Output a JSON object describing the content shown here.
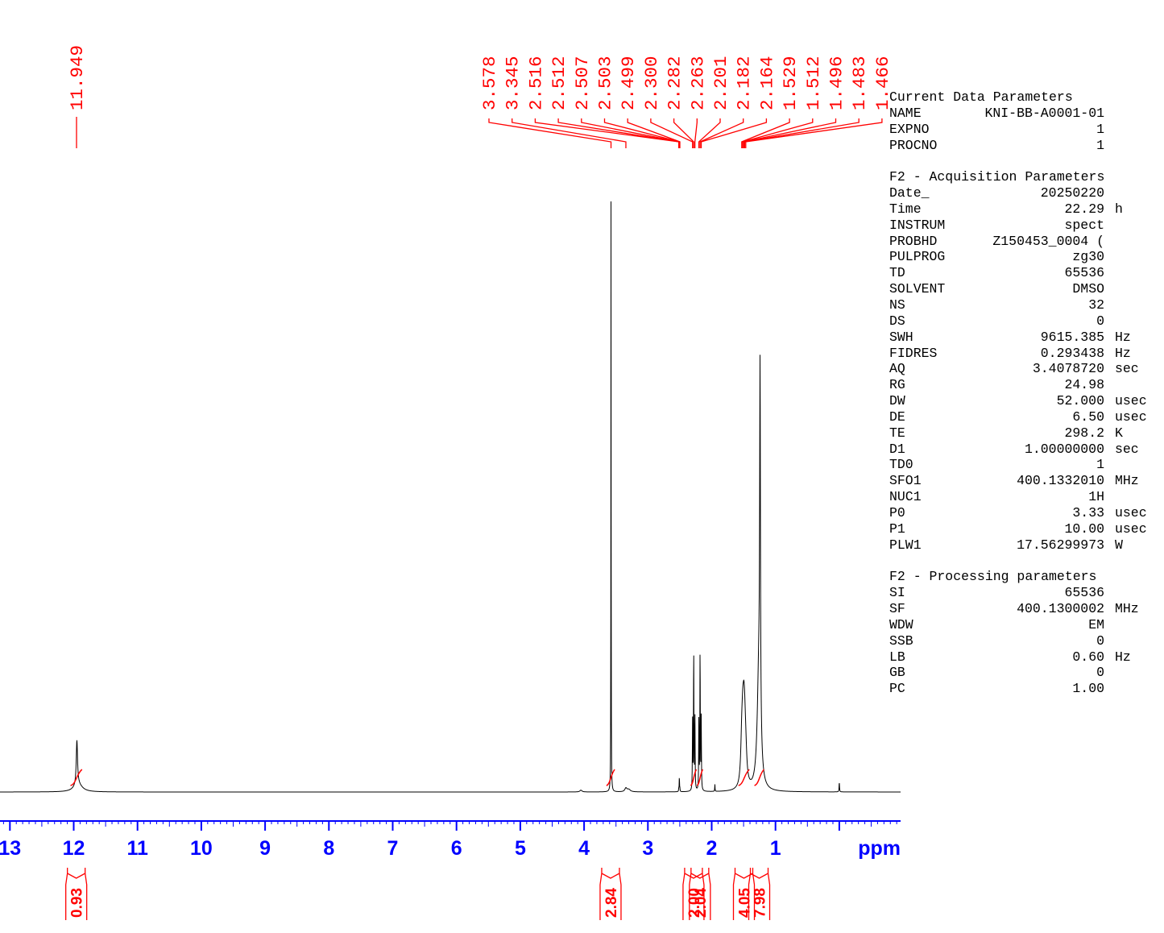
{
  "chart_data": {
    "type": "line",
    "xlabel": "ppm",
    "xlim": [
      13.1,
      -0.9
    ],
    "x_ticks": [
      "13",
      "12",
      "11",
      "10",
      "9",
      "8",
      "7",
      "6",
      "5",
      "4",
      "3",
      "2",
      "1"
    ],
    "peak_labels": [
      "11.949",
      "3.578",
      "3.345",
      "2.516",
      "2.512",
      "2.507",
      "2.503",
      "2.499",
      "2.300",
      "2.282",
      "2.263",
      "2.201",
      "2.182",
      "2.164",
      "1.529",
      "1.512",
      "1.496",
      "1.483",
      "1.466"
    ],
    "integrals": [
      {
        "from": 12.05,
        "to": 11.87,
        "value": "0.93"
      },
      {
        "from": 3.65,
        "to": 3.52,
        "value": "2.84"
      },
      {
        "from": 2.33,
        "to": 2.24,
        "value": "2.00"
      },
      {
        "from": 2.23,
        "to": 2.14,
        "value": "2.04"
      },
      {
        "from": 1.58,
        "to": 1.41,
        "value": "4.05"
      },
      {
        "from": 1.33,
        "to": 1.18,
        "value": "7.98"
      }
    ],
    "peaks": [
      {
        "ppm": 11.95,
        "height": 0.075,
        "width": 0.012
      },
      {
        "ppm": 11.93,
        "height": 0.012,
        "width": 0.08
      },
      {
        "ppm": 3.578,
        "height": 1.0,
        "width": 0.0022
      },
      {
        "ppm": 3.345,
        "height": 0.006,
        "width": 0.02
      },
      {
        "ppm": 3.3,
        "height": 0.004,
        "width": 0.03
      },
      {
        "ppm": 4.05,
        "height": 0.003,
        "width": 0.02
      },
      {
        "ppm": 2.516,
        "height": 0.005,
        "width": 0.003
      },
      {
        "ppm": 2.507,
        "height": 0.025,
        "width": 0.003
      },
      {
        "ppm": 2.499,
        "height": 0.005,
        "width": 0.003
      },
      {
        "ppm": 2.3,
        "height": 0.115,
        "width": 0.0035
      },
      {
        "ppm": 2.282,
        "height": 0.238,
        "width": 0.0035
      },
      {
        "ppm": 2.263,
        "height": 0.13,
        "width": 0.0035
      },
      {
        "ppm": 2.201,
        "height": 0.125,
        "width": 0.0035
      },
      {
        "ppm": 2.182,
        "height": 0.24,
        "width": 0.0035
      },
      {
        "ppm": 2.164,
        "height": 0.12,
        "width": 0.0035
      },
      {
        "ppm": 1.95,
        "height": 0.012,
        "width": 0.003
      },
      {
        "ppm": 1.529,
        "height": 0.06,
        "width": 0.018
      },
      {
        "ppm": 1.512,
        "height": 0.075,
        "width": 0.018
      },
      {
        "ppm": 1.496,
        "height": 0.075,
        "width": 0.018
      },
      {
        "ppm": 1.483,
        "height": 0.06,
        "width": 0.018
      },
      {
        "ppm": 1.466,
        "height": 0.04,
        "width": 0.02
      },
      {
        "ppm": 1.242,
        "height": 0.58,
        "width": 0.007
      },
      {
        "ppm": 1.26,
        "height": 0.2,
        "width": 0.03
      },
      {
        "ppm": 0.0,
        "height": 0.016,
        "width": 0.004
      }
    ]
  },
  "parameters": {
    "current": {
      "title": "Current Data Parameters",
      "rows": [
        {
          "k": "NAME",
          "v": "KNI-BB-A0001-01",
          "u": ""
        },
        {
          "k": "EXPNO",
          "v": "1",
          "u": ""
        },
        {
          "k": "PROCNO",
          "v": "1",
          "u": ""
        }
      ]
    },
    "acquisition": {
      "title": "F2 - Acquisition Parameters",
      "rows": [
        {
          "k": "Date_",
          "v": "20250220",
          "u": ""
        },
        {
          "k": "Time",
          "v": "22.29",
          "u": "h"
        },
        {
          "k": "INSTRUM",
          "v": "spect",
          "u": ""
        },
        {
          "k": "PROBHD",
          "v": "Z150453_0004 (",
          "u": ""
        },
        {
          "k": "PULPROG",
          "v": "zg30",
          "u": ""
        },
        {
          "k": "TD",
          "v": "65536",
          "u": ""
        },
        {
          "k": "SOLVENT",
          "v": "DMSO",
          "u": ""
        },
        {
          "k": "NS",
          "v": "32",
          "u": ""
        },
        {
          "k": "DS",
          "v": "0",
          "u": ""
        },
        {
          "k": "SWH",
          "v": "9615.385",
          "u": "Hz"
        },
        {
          "k": "FIDRES",
          "v": "0.293438",
          "u": "Hz"
        },
        {
          "k": "AQ",
          "v": "3.4078720",
          "u": "sec"
        },
        {
          "k": "RG",
          "v": "24.98",
          "u": ""
        },
        {
          "k": "DW",
          "v": "52.000",
          "u": "usec"
        },
        {
          "k": "DE",
          "v": "6.50",
          "u": "usec"
        },
        {
          "k": "TE",
          "v": "298.2",
          "u": "K"
        },
        {
          "k": "D1",
          "v": "1.00000000",
          "u": "sec"
        },
        {
          "k": "TD0",
          "v": "1",
          "u": ""
        },
        {
          "k": "SFO1",
          "v": "400.1332010",
          "u": "MHz"
        },
        {
          "k": "NUC1",
          "v": "1H",
          "u": ""
        },
        {
          "k": "P0",
          "v": "3.33",
          "u": "usec"
        },
        {
          "k": "P1",
          "v": "10.00",
          "u": "usec"
        },
        {
          "k": "PLW1",
          "v": "17.56299973",
          "u": "W"
        }
      ]
    },
    "processing": {
      "title": "F2 - Processing parameters",
      "rows": [
        {
          "k": "SI",
          "v": "65536",
          "u": ""
        },
        {
          "k": "SF",
          "v": "400.1300002",
          "u": "MHz"
        },
        {
          "k": "WDW",
          "v": "EM",
          "u": ""
        },
        {
          "k": "SSB",
          "v": "0",
          "u": ""
        },
        {
          "k": "LB",
          "v": "0.60",
          "u": "Hz"
        },
        {
          "k": "GB",
          "v": "0",
          "u": ""
        },
        {
          "k": "PC",
          "v": "1.00",
          "u": ""
        }
      ]
    }
  },
  "colors": {
    "trace": "#000000",
    "peak_labels": "#ff0000",
    "integrals": "#ff0000",
    "axis": "#0000ff"
  }
}
